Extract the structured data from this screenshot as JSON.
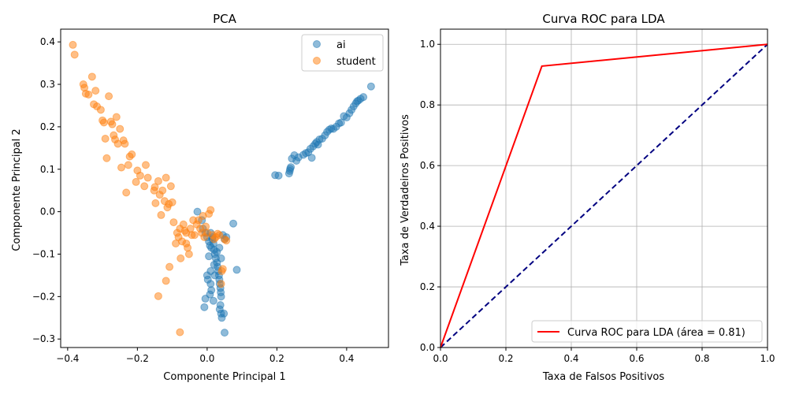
{
  "chart_data": [
    {
      "type": "scatter",
      "title": "PCA",
      "xlabel": "Componente Principal 1",
      "ylabel": "Componente Principal 2",
      "xlim": [
        -0.42,
        0.52
      ],
      "ylim": [
        -0.32,
        0.43
      ],
      "xticks": [
        -0.4,
        -0.2,
        0.0,
        0.2,
        0.4
      ],
      "xtick_labels": [
        "−0.4",
        "−0.2",
        "0.0",
        "0.2",
        "0.4"
      ],
      "yticks": [
        -0.3,
        -0.2,
        -0.1,
        0.0,
        0.1,
        0.2,
        0.3,
        0.4
      ],
      "ytick_labels": [
        "−0.3",
        "−0.2",
        "−0.1",
        "0.0",
        "0.1",
        "0.2",
        "0.3",
        "0.4"
      ],
      "grid": false,
      "legend": "top-right",
      "series": [
        {
          "name": "ai",
          "color": "#1f77b4",
          "points": [
            [
              0.195,
              0.086
            ],
            [
              0.205,
              0.085
            ],
            [
              0.235,
              0.09
            ],
            [
              0.237,
              0.096
            ],
            [
              0.238,
              0.101
            ],
            [
              0.24,
              0.105
            ],
            [
              0.243,
              0.125
            ],
            [
              0.25,
              0.133
            ],
            [
              0.256,
              0.12
            ],
            [
              0.262,
              0.128
            ],
            [
              0.276,
              0.134
            ],
            [
              0.283,
              0.138
            ],
            [
              0.29,
              0.14
            ],
            [
              0.296,
              0.148
            ],
            [
              0.3,
              0.127
            ],
            [
              0.304,
              0.154
            ],
            [
              0.31,
              0.16
            ],
            [
              0.314,
              0.164
            ],
            [
              0.318,
              0.158
            ],
            [
              0.322,
              0.17
            ],
            [
              0.33,
              0.172
            ],
            [
              0.338,
              0.18
            ],
            [
              0.344,
              0.188
            ],
            [
              0.35,
              0.193
            ],
            [
              0.356,
              0.196
            ],
            [
              0.362,
              0.195
            ],
            [
              0.37,
              0.2
            ],
            [
              0.378,
              0.208
            ],
            [
              0.384,
              0.21
            ],
            [
              0.392,
              0.225
            ],
            [
              0.4,
              0.222
            ],
            [
              0.408,
              0.232
            ],
            [
              0.414,
              0.24
            ],
            [
              0.42,
              0.248
            ],
            [
              0.426,
              0.255
            ],
            [
              0.43,
              0.26
            ],
            [
              0.434,
              0.262
            ],
            [
              0.44,
              0.266
            ],
            [
              0.448,
              0.27
            ],
            [
              0.47,
              0.295
            ],
            [
              -0.028,
              0.0
            ],
            [
              -0.015,
              -0.02
            ],
            [
              -0.012,
              -0.04
            ],
            [
              -0.005,
              -0.05
            ],
            [
              0.0,
              -0.06
            ],
            [
              0.005,
              -0.07
            ],
            [
              0.008,
              -0.08
            ],
            [
              0.01,
              -0.05
            ],
            [
              0.012,
              -0.085
            ],
            [
              0.015,
              -0.06
            ],
            [
              0.018,
              -0.075
            ],
            [
              0.02,
              -0.09
            ],
            [
              0.022,
              -0.1
            ],
            [
              0.025,
              -0.11
            ],
            [
              0.028,
              -0.12
            ],
            [
              0.03,
              -0.13
            ],
            [
              0.032,
              -0.14
            ],
            [
              0.034,
              -0.15
            ],
            [
              0.035,
              -0.16
            ],
            [
              0.036,
              -0.17
            ],
            [
              0.038,
              -0.18
            ],
            [
              0.039,
              -0.19
            ],
            [
              0.04,
              -0.2
            ],
            [
              0.038,
              -0.22
            ],
            [
              0.036,
              -0.23
            ],
            [
              0.04,
              -0.24
            ],
            [
              0.042,
              -0.25
            ],
            [
              0.048,
              -0.24
            ],
            [
              0.05,
              -0.285
            ],
            [
              0.005,
              -0.105
            ],
            [
              0.0,
              -0.15
            ],
            [
              0.002,
              -0.16
            ],
            [
              0.01,
              -0.17
            ],
            [
              0.012,
              -0.185
            ],
            [
              0.008,
              -0.195
            ],
            [
              -0.005,
              -0.205
            ],
            [
              -0.008,
              -0.225
            ],
            [
              0.018,
              -0.21
            ],
            [
              0.022,
              -0.15
            ],
            [
              0.02,
              -0.125
            ],
            [
              0.045,
              -0.055
            ],
            [
              0.05,
              -0.065
            ],
            [
              0.055,
              -0.06
            ],
            [
              0.075,
              -0.028
            ],
            [
              0.085,
              -0.137
            ],
            [
              0.01,
              -0.14
            ],
            [
              0.015,
              -0.065
            ],
            [
              0.028,
              -0.095
            ],
            [
              0.035,
              -0.085
            ],
            [
              0.04,
              -0.11
            ]
          ]
        },
        {
          "name": "student",
          "color": "#ff7f0e",
          "points": [
            [
              -0.385,
              0.393
            ],
            [
              -0.38,
              0.37
            ],
            [
              -0.355,
              0.3
            ],
            [
              -0.352,
              0.292
            ],
            [
              -0.348,
              0.278
            ],
            [
              -0.34,
              0.276
            ],
            [
              -0.33,
              0.318
            ],
            [
              -0.325,
              0.253
            ],
            [
              -0.32,
              0.285
            ],
            [
              -0.316,
              0.248
            ],
            [
              -0.305,
              0.24
            ],
            [
              -0.3,
              0.215
            ],
            [
              -0.296,
              0.21
            ],
            [
              -0.292,
              0.172
            ],
            [
              -0.288,
              0.126
            ],
            [
              -0.282,
              0.272
            ],
            [
              -0.276,
              0.212
            ],
            [
              -0.272,
              0.206
            ],
            [
              -0.268,
              0.18
            ],
            [
              -0.264,
              0.17
            ],
            [
              -0.26,
              0.223
            ],
            [
              -0.256,
              0.16
            ],
            [
              -0.25,
              0.195
            ],
            [
              -0.246,
              0.104
            ],
            [
              -0.24,
              0.168
            ],
            [
              -0.236,
              0.16
            ],
            [
              -0.232,
              0.045
            ],
            [
              -0.226,
              0.11
            ],
            [
              -0.222,
              0.13
            ],
            [
              -0.216,
              0.135
            ],
            [
              -0.204,
              0.07
            ],
            [
              -0.2,
              0.097
            ],
            [
              -0.192,
              0.085
            ],
            [
              -0.18,
              0.06
            ],
            [
              -0.176,
              0.11
            ],
            [
              -0.17,
              0.08
            ],
            [
              -0.15,
              0.058
            ],
            [
              -0.148,
              0.02
            ],
            [
              -0.14,
              0.072
            ],
            [
              -0.136,
              0.04
            ],
            [
              -0.132,
              -0.008
            ],
            [
              -0.128,
              0.05
            ],
            [
              -0.122,
              0.025
            ],
            [
              -0.118,
              0.08
            ],
            [
              -0.114,
              0.01
            ],
            [
              -0.11,
              0.018
            ],
            [
              -0.104,
              0.06
            ],
            [
              -0.1,
              0.022
            ],
            [
              -0.096,
              -0.025
            ],
            [
              -0.09,
              -0.075
            ],
            [
              -0.086,
              -0.05
            ],
            [
              -0.082,
              -0.06
            ],
            [
              -0.078,
              -0.04
            ],
            [
              -0.076,
              -0.11
            ],
            [
              -0.072,
              -0.07
            ],
            [
              -0.068,
              -0.03
            ],
            [
              -0.064,
              -0.045
            ],
            [
              -0.06,
              -0.05
            ],
            [
              -0.056,
              -0.085
            ],
            [
              -0.052,
              -0.1
            ],
            [
              -0.048,
              -0.04
            ],
            [
              -0.044,
              -0.055
            ],
            [
              -0.04,
              -0.02
            ],
            [
              -0.036,
              -0.055
            ],
            [
              -0.03,
              -0.03
            ],
            [
              -0.025,
              -0.02
            ],
            [
              -0.02,
              -0.04
            ],
            [
              -0.015,
              -0.05
            ],
            [
              -0.012,
              -0.01
            ],
            [
              -0.008,
              -0.06
            ],
            [
              -0.004,
              -0.035
            ],
            [
              0.0,
              -0.05
            ],
            [
              0.005,
              -0.005
            ],
            [
              0.01,
              0.004
            ],
            [
              0.015,
              -0.055
            ],
            [
              0.02,
              -0.065
            ],
            [
              0.025,
              -0.06
            ],
            [
              0.03,
              -0.052
            ],
            [
              0.035,
              -0.055
            ],
            [
              0.04,
              -0.17
            ],
            [
              0.042,
              -0.14
            ],
            [
              0.045,
              -0.135
            ],
            [
              0.05,
              -0.065
            ],
            [
              0.055,
              -0.068
            ],
            [
              -0.108,
              -0.13
            ],
            [
              -0.118,
              -0.163
            ],
            [
              -0.14,
              -0.199
            ],
            [
              -0.078,
              -0.284
            ],
            [
              -0.152,
              0.05
            ],
            [
              -0.06,
              -0.075
            ]
          ]
        }
      ]
    },
    {
      "type": "line",
      "title": "Curva ROC para LDA",
      "xlabel": "Taxa de Falsos Positivos",
      "ylabel": "Taxa de Verdadeiros Positivos",
      "xlim": [
        0.0,
        1.0
      ],
      "ylim": [
        0.0,
        1.05
      ],
      "xticks": [
        0.0,
        0.2,
        0.4,
        0.6,
        0.8,
        1.0
      ],
      "xtick_labels": [
        "0.0",
        "0.2",
        "0.4",
        "0.6",
        "0.8",
        "1.0"
      ],
      "yticks": [
        0.0,
        0.2,
        0.4,
        0.6,
        0.8,
        1.0
      ],
      "ytick_labels": [
        "0.0",
        "0.2",
        "0.4",
        "0.6",
        "0.8",
        "1.0"
      ],
      "grid": true,
      "legend": "bottom-right",
      "series": [
        {
          "name": "Curva ROC para LDA (área = 0.81)",
          "color": "#ff0000",
          "style": "solid",
          "x": [
            0.0,
            0.31,
            1.0
          ],
          "y": [
            0.0,
            0.928,
            1.0
          ]
        },
        {
          "name": "",
          "color": "#000080",
          "style": "dashed",
          "x": [
            0.0,
            1.0
          ],
          "y": [
            0.0,
            1.0
          ]
        }
      ]
    }
  ]
}
